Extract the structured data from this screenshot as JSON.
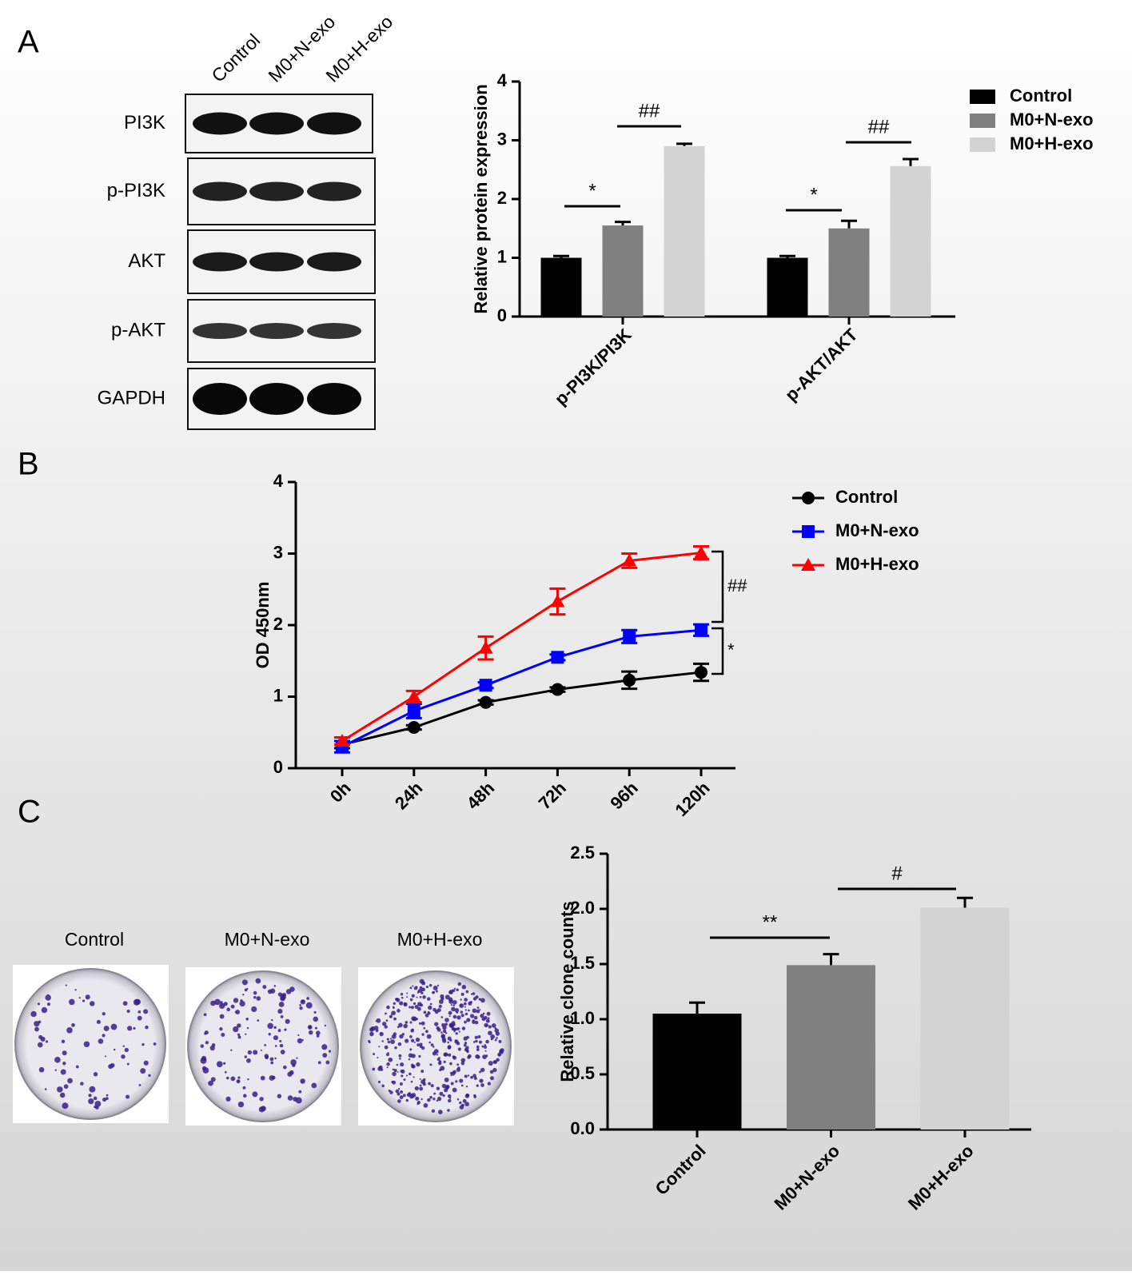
{
  "panel_labels": [
    "A",
    "B",
    "C"
  ],
  "blot": {
    "lanes": [
      "Control",
      "M0+N-exo",
      "M0+H-exo"
    ],
    "rows": [
      "PI3K",
      "p-PI3K",
      "AKT",
      "p-AKT",
      "GAPDH"
    ]
  },
  "colonies": {
    "labels": [
      "Control",
      "M0+N-exo",
      "M0+H-exo"
    ]
  },
  "chart_data": [
    {
      "type": "bar",
      "ylabel": "Relative protein expression",
      "categories": [
        "p-PI3K/PI3K",
        "p-AKT/AKT"
      ],
      "series": [
        {
          "name": "Control",
          "color": "#000000",
          "values": [
            1.0,
            1.0
          ],
          "errors": [
            0.03,
            0.03
          ]
        },
        {
          "name": "M0+N-exo",
          "color": "#808080",
          "values": [
            1.55,
            1.5
          ],
          "errors": [
            0.06,
            0.13
          ]
        },
        {
          "name": "M0+H-exo",
          "color": "#d3d3d3",
          "values": [
            2.9,
            2.56
          ],
          "errors": [
            0.04,
            0.12
          ]
        }
      ],
      "ylim": [
        0,
        4
      ],
      "yticks": [
        0,
        1,
        2,
        3,
        4
      ],
      "legend": "top-right",
      "annotations": [
        "*",
        "##",
        "*",
        "##"
      ]
    },
    {
      "type": "line",
      "ylabel": "OD 450nm",
      "categories": [
        "0h",
        "24h",
        "48h",
        "72h",
        "96h",
        "120h"
      ],
      "series": [
        {
          "name": "Control",
          "color": "#000000",
          "marker": "circle",
          "values": [
            0.33,
            0.57,
            0.92,
            1.1,
            1.23,
            1.34
          ],
          "errors": [
            0.05,
            0.03,
            0.03,
            0.03,
            0.12,
            0.12
          ]
        },
        {
          "name": "M0+N-exo",
          "color": "#0000ff",
          "marker": "square",
          "values": [
            0.3,
            0.8,
            1.16,
            1.55,
            1.84,
            1.93
          ],
          "errors": [
            0.08,
            0.1,
            0.04,
            0.04,
            0.09,
            0.08
          ]
        },
        {
          "name": "M0+H-exo",
          "color": "#ff0000",
          "marker": "triangle",
          "values": [
            0.38,
            1.0,
            1.68,
            2.33,
            2.9,
            3.01
          ],
          "errors": [
            0.05,
            0.08,
            0.16,
            0.18,
            0.1,
            0.09
          ]
        }
      ],
      "ylim": [
        0,
        4
      ],
      "yticks": [
        0,
        1,
        2,
        3,
        4
      ],
      "legend": "top-right",
      "annotations": [
        "##",
        "*"
      ]
    },
    {
      "type": "bar",
      "ylabel": "Relative clone counts",
      "categories": [
        "Control",
        "M0+N-exo",
        "M0+H-exo"
      ],
      "colors": [
        "#000000",
        "#808080",
        "#d3d3d3"
      ],
      "values": [
        1.05,
        1.49,
        2.01
      ],
      "errors": [
        0.1,
        0.1,
        0.09
      ],
      "ylim": [
        0,
        2.5
      ],
      "yticks": [
        {
          "value": 0,
          "label": "0.0"
        },
        0.5,
        {
          "value": 1,
          "label": "1.0"
        },
        1.5,
        {
          "value": 2,
          "label": "2.0"
        },
        2.5
      ],
      "annotations": [
        "**",
        "#"
      ]
    }
  ]
}
